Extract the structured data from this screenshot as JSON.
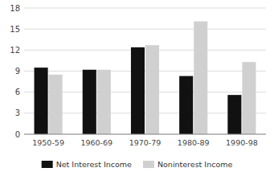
{
  "chart_data": {
    "type": "bar",
    "categories": [
      "1950-59",
      "1960-69",
      "1970-79",
      "1980-89",
      "1990-98"
    ],
    "series": [
      {
        "name": "Net Interest Income",
        "color": "#111111",
        "values": [
          9.5,
          9.2,
          12.4,
          8.3,
          5.6
        ]
      },
      {
        "name": "Noninterest Income",
        "color": "#d0d0d0",
        "values": [
          8.5,
          9.2,
          12.7,
          16.1,
          10.3
        ]
      }
    ],
    "ylim": [
      0,
      18
    ],
    "yticks": [
      0,
      3,
      6,
      9,
      12,
      15,
      18
    ],
    "grid": true,
    "legend": "bottom"
  }
}
